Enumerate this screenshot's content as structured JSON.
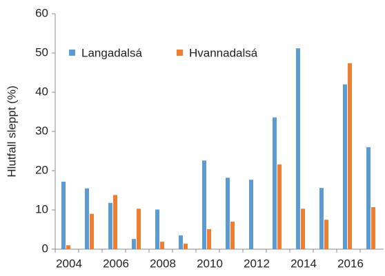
{
  "chart_data": {
    "type": "bar",
    "y_label": "Hlutfall sleppt (%)",
    "categories": [
      "2004",
      null,
      "2006",
      null,
      "2008",
      null,
      "2010",
      null,
      "2012",
      null,
      "2014",
      null,
      "2016",
      null
    ],
    "series": [
      {
        "name": "Langadalsá",
        "color": "#5b9bd5",
        "values": [
          17.2,
          15.5,
          11.8,
          2.6,
          10.1,
          3.5,
          22.6,
          18.2,
          17.7,
          33.6,
          51.2,
          15.6,
          42,
          26
        ]
      },
      {
        "name": "Hvannadalsá",
        "color": "#ed7d31",
        "values": [
          1,
          9,
          13.8,
          10.3,
          1.9,
          1.4,
          5.1,
          7,
          null,
          21.6,
          10.3,
          7.5,
          47.4,
          10.7
        ]
      }
    ],
    "ylim": [
      0,
      60
    ],
    "yticks": [
      0,
      10,
      20,
      30,
      40,
      50,
      60
    ],
    "legend": "top-left"
  }
}
